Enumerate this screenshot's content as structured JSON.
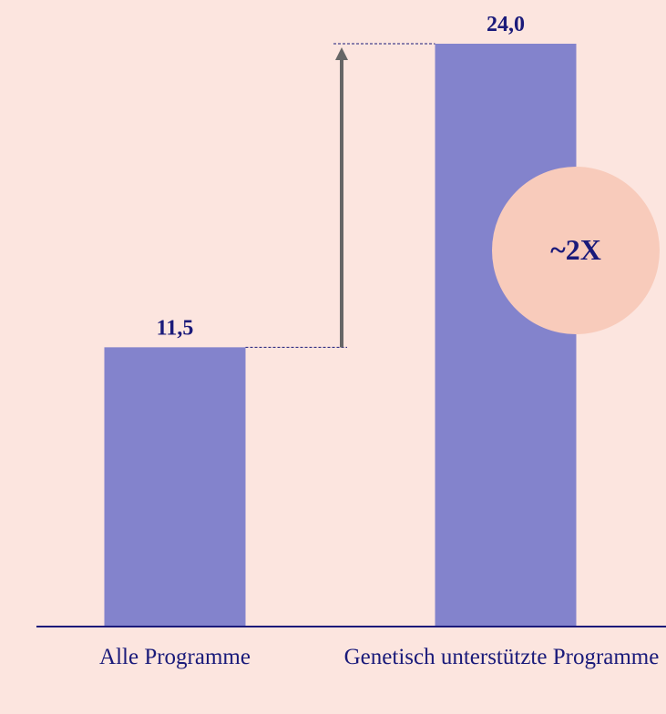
{
  "chart_data": {
    "type": "bar",
    "categories": [
      "Alle Programme",
      "Genetisch unterstützte Programme"
    ],
    "values": [
      11.5,
      24.0
    ],
    "value_labels": [
      "11,5",
      "24,0"
    ],
    "color": "#8383cc",
    "ylim": [
      0,
      25.8
    ],
    "annotation": "~2X"
  }
}
